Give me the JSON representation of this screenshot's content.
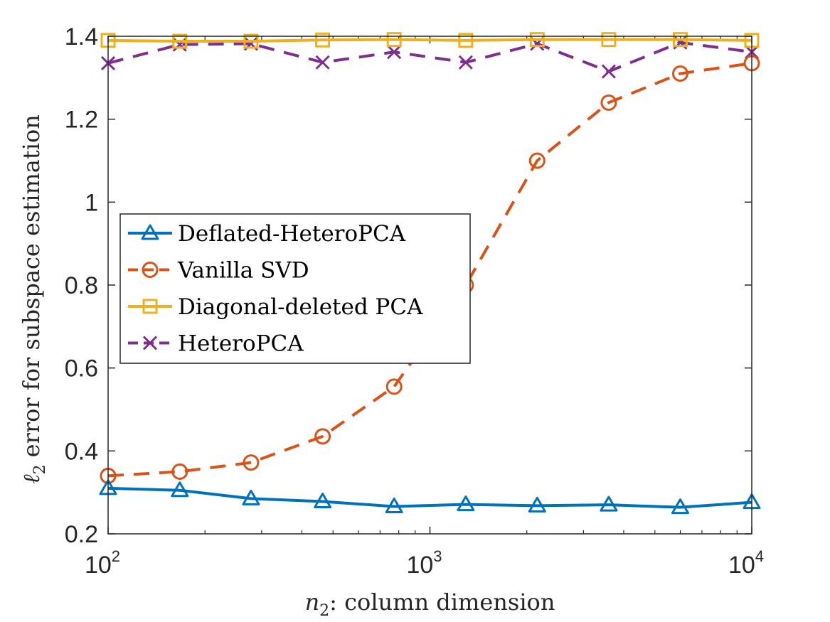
{
  "chart_data": {
    "type": "line",
    "title": "",
    "xscale": "log",
    "xlabel": "n2: column dimension",
    "xlabel_parts": {
      "var": "n",
      "sub": "2",
      "rest": ": column dimension"
    },
    "ylabel": "ℓ2 error for subspace estimation",
    "ylabel_parts": {
      "var": "ℓ",
      "sub": "2",
      "rest": " error for subspace estimation"
    },
    "xlim": [
      100,
      10000
    ],
    "ylim": [
      0.2,
      1.4
    ],
    "yticks": [
      0.2,
      0.4,
      0.6,
      0.8,
      1,
      1.2,
      1.4
    ],
    "ytick_labels": [
      "0.2",
      "0.4",
      "0.6",
      "0.8",
      "1",
      "1.2",
      "1.4"
    ],
    "xticks": [
      100,
      1000,
      10000
    ],
    "xtick_labels": [
      {
        "base": "10",
        "exp": "2"
      },
      {
        "base": "10",
        "exp": "3"
      },
      {
        "base": "10",
        "exp": "4"
      }
    ],
    "x": [
      100,
      167,
      278,
      464,
      774,
      1292,
      2154,
      3594,
      5995,
      10000
    ],
    "legend_position": "center-left",
    "series": [
      {
        "name": "Deflated-HeteroPCA",
        "color": "#0072BD",
        "marker": "triangle",
        "linestyle": "solid",
        "values": [
          0.31,
          0.305,
          0.285,
          0.278,
          0.266,
          0.271,
          0.268,
          0.27,
          0.264,
          0.276
        ]
      },
      {
        "name": "Vanilla SVD",
        "color": "#D95319",
        "marker": "circle",
        "linestyle": "dashed",
        "values": [
          0.34,
          0.35,
          0.372,
          0.435,
          0.555,
          0.8,
          1.1,
          1.24,
          1.31,
          1.335
        ]
      },
      {
        "name": "Diagonal-deleted PCA",
        "color": "#EDB120",
        "marker": "square",
        "linestyle": "solid",
        "values": [
          1.39,
          1.388,
          1.388,
          1.391,
          1.392,
          1.39,
          1.392,
          1.392,
          1.392,
          1.39
        ]
      },
      {
        "name": "HeteroPCA",
        "color": "#7E2F8E",
        "marker": "x",
        "linestyle": "dashed",
        "values": [
          1.335,
          1.38,
          1.382,
          1.337,
          1.362,
          1.337,
          1.382,
          1.315,
          1.385,
          1.362
        ]
      }
    ]
  }
}
